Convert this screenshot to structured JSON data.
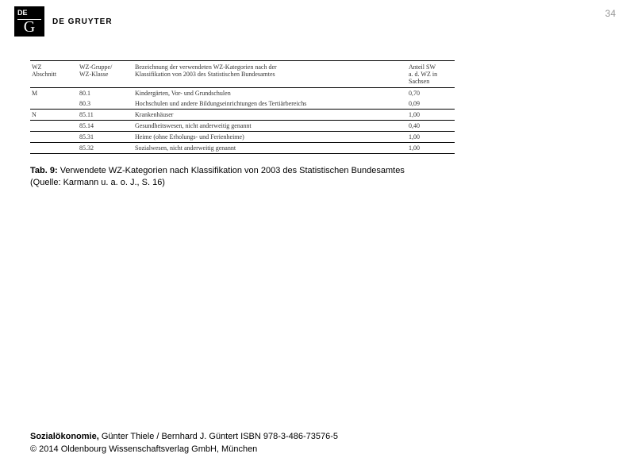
{
  "header": {
    "logo_top": "DE",
    "logo_bottom": "G",
    "brand": "DE GRUYTER"
  },
  "page_number": "34",
  "table": {
    "columns": [
      {
        "line1": "WZ",
        "line2": "Abschnitt"
      },
      {
        "line1": "WZ-Gruppe/",
        "line2": "WZ-Klasse"
      },
      {
        "line1": "Bezeichnung der verwendeten WZ-Kategorien nach der",
        "line2": "Klassifikation von 2003 des Statistischen Bundesamtes"
      },
      {
        "line1": "Anteil SW",
        "line2": "a. d. WZ in",
        "line3": "Sachsen"
      }
    ],
    "rows": [
      {
        "c1": "M",
        "c2": "80.1",
        "c3": "Kindergärten, Vor- und Grundschulen",
        "c4": "0,70",
        "topBorder": true
      },
      {
        "c1": "",
        "c2": "80.3",
        "c3": "Hochschulen und andere Bildungseinrichtungen des Tertiärbereichs",
        "c4": "0,09",
        "topBorder": false
      },
      {
        "c1": "N",
        "c2": "85.11",
        "c3": "Krankenhäuser",
        "c4": "1,00",
        "topBorder": true
      },
      {
        "c1": "",
        "c2": "85.14",
        "c3": "Gesundheitswesen, nicht anderweitig genannt",
        "c4": "0,40",
        "topBorder": true
      },
      {
        "c1": "",
        "c2": "85.31",
        "c3": "Heime (ohne Erholungs- und Ferienheime)",
        "c4": "1,00",
        "topBorder": true
      },
      {
        "c1": "",
        "c2": "85.32",
        "c3": "Sozialwesen, nicht anderweitig genannt",
        "c4": "1,00",
        "topBorder": true
      }
    ],
    "style": {
      "font_family": "Times New Roman",
      "font_size_pt": 8,
      "border_color": "#000000",
      "background_color": "#ffffff",
      "col_widths": [
        "60px",
        "70px",
        "auto",
        "60px"
      ]
    }
  },
  "caption": {
    "label": "Tab. 9:",
    "text": "Verwendete WZ-Kategorien nach Klassifikation von 2003 des Statistischen Bundesamtes",
    "source": "(Quelle: Karmann u. a. o. J., S. 16)"
  },
  "footer": {
    "title": "Sozialökonomie,",
    "authors": "Günter Thiele / Bernhard J. Güntert ISBN 978-3-486-73576-5",
    "copyright": "© 2014 Oldenbourg Wissenschaftsverlag GmbH, München"
  },
  "colors": {
    "page_number": "#999999",
    "text": "#000000",
    "background": "#ffffff"
  }
}
